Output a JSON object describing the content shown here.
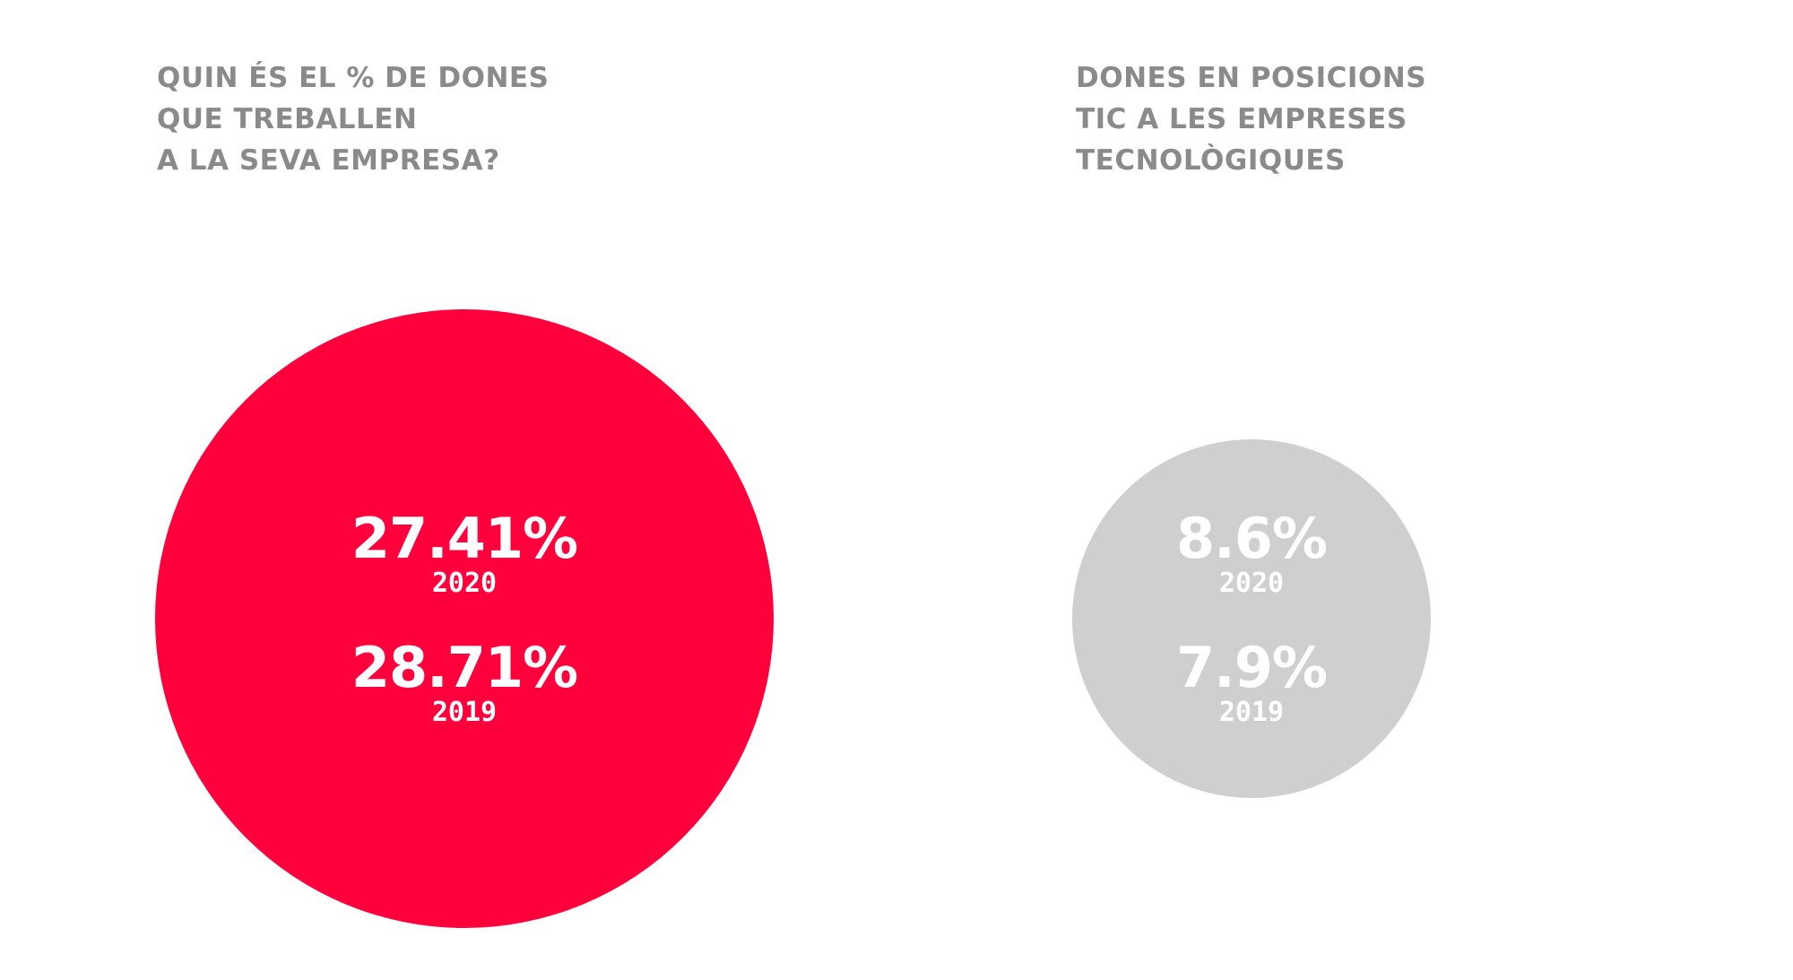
{
  "chart_data": [
    {
      "type": "bubble",
      "title_lines": [
        "QUIN ÉS EL % DE DONES",
        "QUE TREBALLEN",
        "A LA SEVA EMPRESA?"
      ],
      "series": [
        {
          "year": "2020",
          "value": 27.41,
          "label": "27.41%"
        },
        {
          "year": "2019",
          "value": 28.71,
          "label": "28.71%"
        }
      ],
      "color": "#ff003c"
    },
    {
      "type": "bubble",
      "title_lines": [
        "DONES EN POSICIONS",
        "TIC A LES EMPRESES",
        "TECNOLÒGIQUES"
      ],
      "series": [
        {
          "year": "2020",
          "value": 8.6,
          "label": "8.6%"
        },
        {
          "year": "2019",
          "value": 7.9,
          "label": "7.9%"
        }
      ],
      "color": "#cfcfcf"
    }
  ]
}
